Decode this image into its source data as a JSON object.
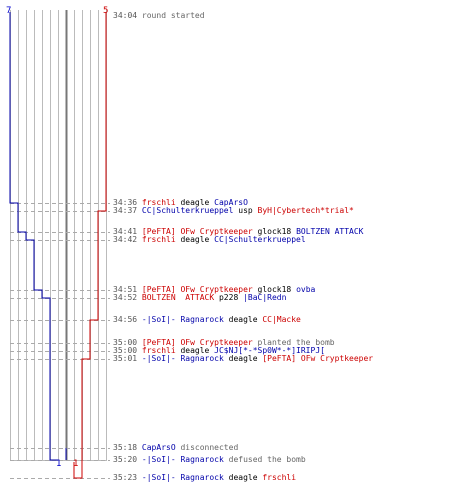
{
  "scoreboard": {
    "start_left": "7",
    "start_right": "5",
    "end_left": "1",
    "end_right": "1"
  },
  "colors": {
    "team_a": "#0000aa",
    "team_b": "#cc0000",
    "timestamp": "#555555",
    "neutral": "#666666",
    "grid": "#bbbbbb"
  },
  "events": [
    {
      "time": "34:04",
      "parts": [
        {
          "text": "round started",
          "role": "g"
        }
      ]
    },
    {
      "time": "34:36",
      "parts": [
        {
          "text": "frschli",
          "role": "b"
        },
        {
          "text": " deagle ",
          "role": "k"
        },
        {
          "text": "CapArsO",
          "role": "a"
        }
      ]
    },
    {
      "time": "34:37",
      "parts": [
        {
          "text": "CC|Schulterkrueppel",
          "role": "a"
        },
        {
          "text": " usp ",
          "role": "k"
        },
        {
          "text": "ByH|Cybertech*trial*",
          "role": "b"
        }
      ]
    },
    {
      "time": "34:41",
      "parts": [
        {
          "text": "[PeFTA] OFw Cryptkeeper",
          "role": "b"
        },
        {
          "text": " glock18 ",
          "role": "k"
        },
        {
          "text": "BOLTZEN ATTACK",
          "role": "a"
        }
      ]
    },
    {
      "time": "34:42",
      "parts": [
        {
          "text": "frschli",
          "role": "b"
        },
        {
          "text": " deagle ",
          "role": "k"
        },
        {
          "text": "CC|Schulterkrueppel",
          "role": "a"
        }
      ]
    },
    {
      "time": "34:51",
      "parts": [
        {
          "text": "[PeFTA] OFw Cryptkeeper",
          "role": "b"
        },
        {
          "text": " glock18 ",
          "role": "k"
        },
        {
          "text": "ovba",
          "role": "a"
        }
      ]
    },
    {
      "time": "34:52",
      "parts": [
        {
          "text": "BOLTZEN  ATTACK",
          "role": "b"
        },
        {
          "text": " p228 ",
          "role": "k"
        },
        {
          "text": "|BaC|Redn",
          "role": "a"
        }
      ]
    },
    {
      "time": "34:56",
      "parts": [
        {
          "text": "-|SoI|- Ragnarock",
          "role": "a"
        },
        {
          "text": " deagle ",
          "role": "k"
        },
        {
          "text": "CC|Macke",
          "role": "b"
        }
      ]
    },
    {
      "time": "35:00",
      "parts": [
        {
          "text": "[PeFTA] OFw Cryptkeeper",
          "role": "b"
        },
        {
          "text": " planted the bomb",
          "role": "g"
        }
      ]
    },
    {
      "time": "35:00",
      "parts": [
        {
          "text": "frschli",
          "role": "b"
        },
        {
          "text": " deagle ",
          "role": "k"
        },
        {
          "text": "JC$NJ[*-*Sp0W*-*]IRIPJ[",
          "role": "a"
        }
      ]
    },
    {
      "time": "35:01",
      "parts": [
        {
          "text": "-|SoI|- Ragnarock",
          "role": "a"
        },
        {
          "text": " deagle ",
          "role": "k"
        },
        {
          "text": "[PeFTA] OFw Cryptkeeper",
          "role": "b"
        }
      ]
    },
    {
      "time": "35:18",
      "parts": [
        {
          "text": "CapArsO",
          "role": "a"
        },
        {
          "text": " disconnected",
          "role": "g"
        }
      ]
    },
    {
      "time": "35:20",
      "parts": [
        {
          "text": "-|SoI|- Ragnarock",
          "role": "a"
        },
        {
          "text": " defused the bomb",
          "role": "g"
        }
      ]
    },
    {
      "time": "35:23",
      "parts": [
        {
          "text": "-|SoI|- Ragnarock",
          "role": "a"
        },
        {
          "text": " deagle ",
          "role": "k"
        },
        {
          "text": "frschli",
          "role": "b"
        }
      ]
    }
  ]
}
